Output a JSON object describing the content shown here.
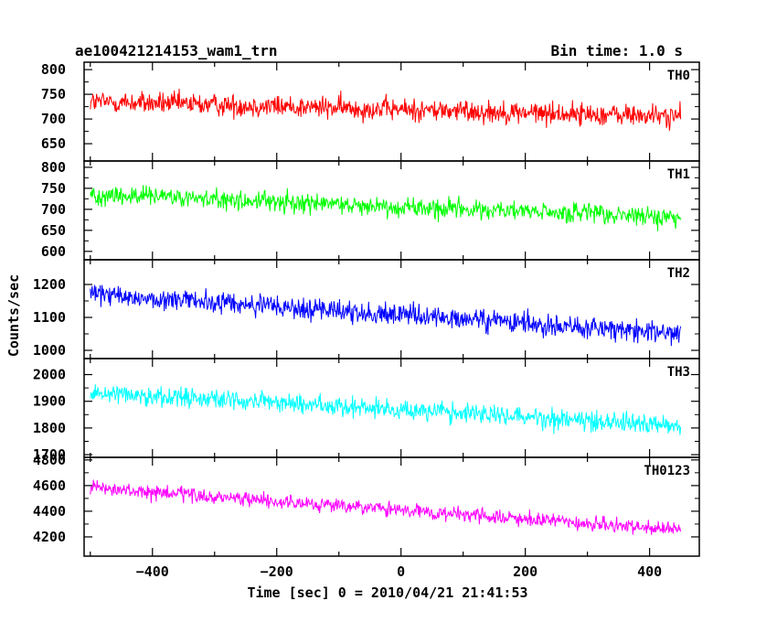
{
  "header": {
    "title": "ae100421214153_wam1_trn",
    "bin_time": "Bin time: 1.0 s"
  },
  "chart_data": {
    "type": "line",
    "xlabel": "Time [sec] 0 = 2010/04/21 21:41:53",
    "ylabel": "Counts/sec",
    "xlim": [
      -510,
      480
    ],
    "x_ticks": [
      -400,
      -200,
      0,
      200,
      400
    ],
    "x_range_data": [
      -500,
      450
    ],
    "bin_time_s": 1.0,
    "panels": [
      {
        "name": "TH0",
        "color": "#ff0000",
        "ylim": [
          615,
          815
        ],
        "y_ticks": [
          650,
          700,
          750,
          800
        ],
        "mean_start": 735,
        "mean_end": 705,
        "noise_amplitude": 30
      },
      {
        "name": "TH1",
        "color": "#00ff00",
        "ylim": [
          580,
          815
        ],
        "y_ticks": [
          600,
          650,
          700,
          750,
          800
        ],
        "mean_start": 735,
        "mean_end": 680,
        "noise_amplitude": 32
      },
      {
        "name": "TH2",
        "color": "#0000ff",
        "ylim": [
          975,
          1275
        ],
        "y_ticks": [
          1000,
          1100,
          1200
        ],
        "mean_start": 1170,
        "mean_end": 1050,
        "noise_amplitude": 45
      },
      {
        "name": "TH3",
        "color": "#00ffff",
        "ylim": [
          1690,
          2060
        ],
        "y_ticks": [
          1700,
          1800,
          1900,
          2000
        ],
        "mean_start": 1935,
        "mean_end": 1810,
        "noise_amplitude": 50
      },
      {
        "name": "TH0123",
        "color": "#ff00ff",
        "ylim": [
          4050,
          4820
        ],
        "y_ticks": [
          4200,
          4400,
          4600,
          4800
        ],
        "mean_start": 4580,
        "mean_end": 4250,
        "noise_amplitude": 75
      }
    ]
  }
}
